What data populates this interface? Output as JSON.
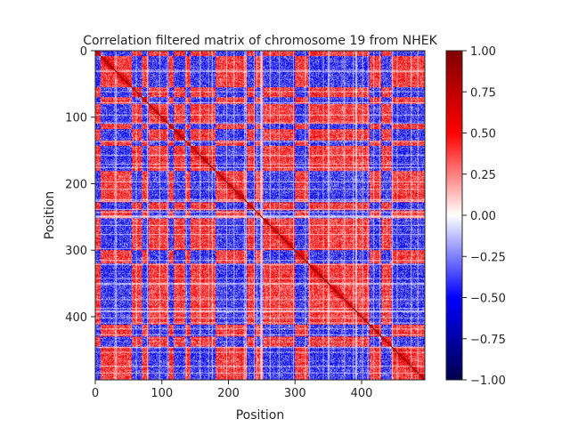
{
  "chart_data": {
    "type": "heatmap",
    "title": "Correlation filtered matrix of chromosome 19 from NHEK",
    "xlabel": "Position",
    "ylabel": "Position",
    "matrix_size": 495,
    "xlim": [
      0,
      495
    ],
    "ylim": [
      495,
      0
    ],
    "x_ticks": [
      0,
      100,
      200,
      300,
      400
    ],
    "y_ticks": [
      0,
      100,
      200,
      300,
      400
    ],
    "colormap": "seismic",
    "vmin": -1.0,
    "vmax": 1.0,
    "diagonal_value": 1.0,
    "colorbar_ticks": [
      "1.00",
      "0.75",
      "0.50",
      "0.25",
      "0.00",
      "−0.25",
      "−0.50",
      "−0.75",
      "−1.00"
    ],
    "colorbar_tick_values": [
      1.0,
      0.75,
      0.5,
      0.25,
      0.0,
      -0.25,
      -0.5,
      -0.75,
      -1.0
    ],
    "compartment_blocks": [
      {
        "start": 0,
        "end": 8,
        "sign": 1
      },
      {
        "start": 8,
        "end": 55,
        "sign": -1
      },
      {
        "start": 55,
        "end": 70,
        "sign": 1
      },
      {
        "start": 70,
        "end": 80,
        "sign": -1
      },
      {
        "start": 80,
        "end": 110,
        "sign": 1
      },
      {
        "start": 110,
        "end": 118,
        "sign": -1
      },
      {
        "start": 118,
        "end": 135,
        "sign": 1
      },
      {
        "start": 135,
        "end": 143,
        "sign": -1
      },
      {
        "start": 143,
        "end": 181,
        "sign": 1
      },
      {
        "start": 181,
        "end": 228,
        "sign": -1
      },
      {
        "start": 228,
        "end": 240,
        "sign": 1
      },
      {
        "start": 240,
        "end": 252,
        "sign": -1
      },
      {
        "start": 252,
        "end": 300,
        "sign": 1
      },
      {
        "start": 300,
        "end": 320,
        "sign": -1
      },
      {
        "start": 320,
        "end": 412,
        "sign": 1
      },
      {
        "start": 412,
        "end": 430,
        "sign": -1
      },
      {
        "start": 430,
        "end": 445,
        "sign": 1
      },
      {
        "start": 445,
        "end": 495,
        "sign": -1
      }
    ],
    "colors": {
      "negative_max": "#00004c",
      "negative": "#0000ff",
      "zero": "#ffffff",
      "positive": "#ff0000",
      "positive_max": "#800000",
      "text": "#262626"
    }
  }
}
